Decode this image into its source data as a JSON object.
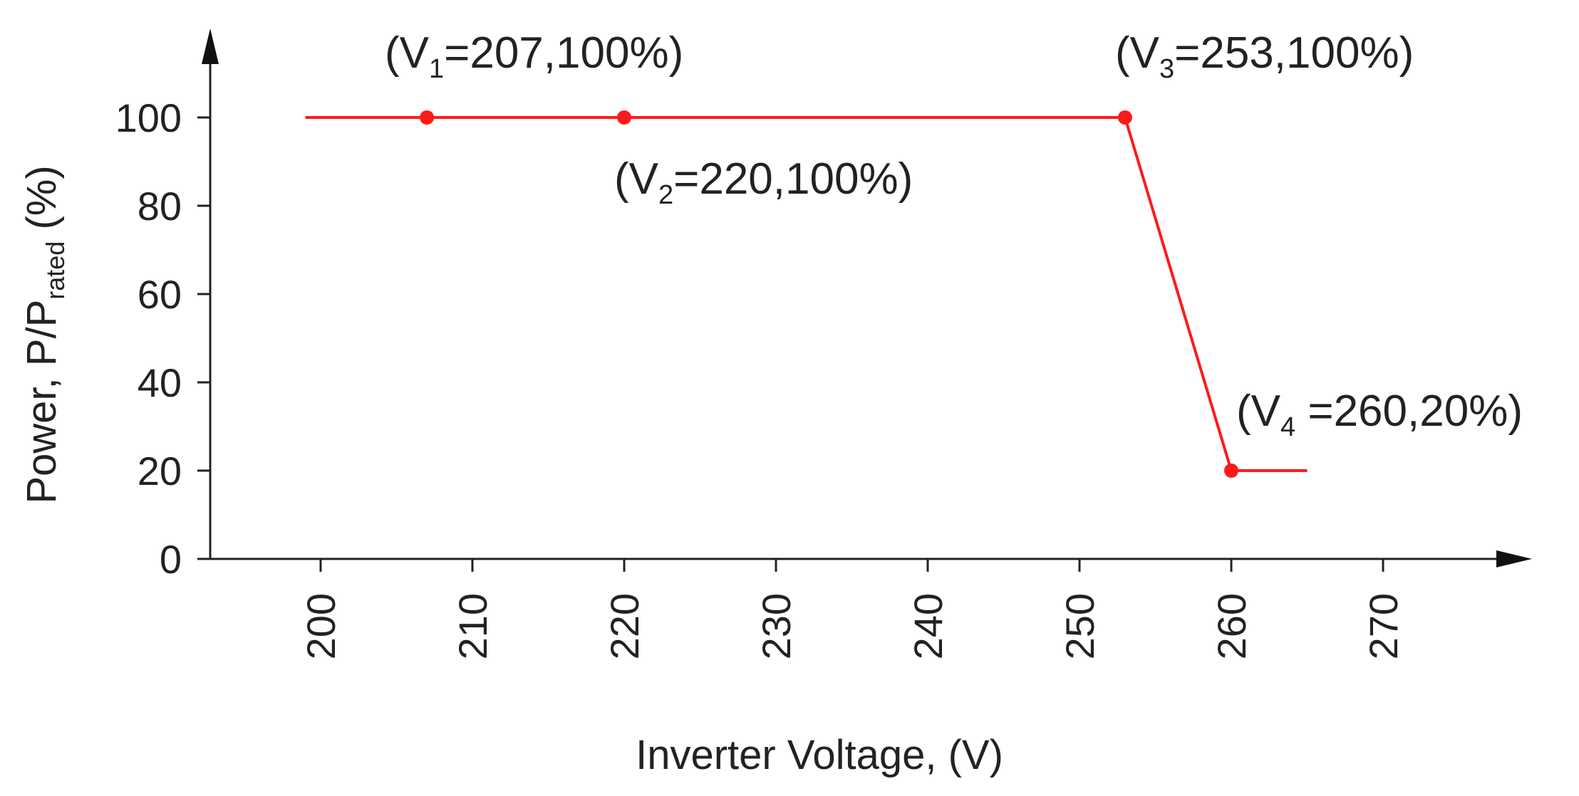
{
  "chart_data": {
    "type": "line",
    "title": "",
    "xlabel": "Inverter Voltage, (V)",
    "ylabel": {
      "main": "Power, P/P",
      "subscript": "rated",
      "unit": " (%)"
    },
    "xlim": [
      190,
      280
    ],
    "ylim": [
      0,
      120
    ],
    "x_ticks": [
      200,
      210,
      220,
      230,
      240,
      250,
      260,
      270
    ],
    "y_ticks": [
      0,
      20,
      40,
      60,
      80,
      100
    ],
    "grid": false,
    "legend": "none",
    "line_color": "#ff1a1a",
    "series": [
      {
        "x": [
          199,
          207,
          220,
          253,
          260,
          265
        ],
        "y": [
          100,
          100,
          100,
          100,
          20,
          20
        ]
      }
    ],
    "marked_points": [
      {
        "x": 207,
        "y": 100
      },
      {
        "x": 220,
        "y": 100
      },
      {
        "x": 253,
        "y": 100
      },
      {
        "x": 260,
        "y": 20
      }
    ],
    "annotations": [
      {
        "open": "(V",
        "sub": "1",
        "rest": "=207,100%)"
      },
      {
        "open": "(V",
        "sub": "2",
        "rest": "=220,100%)"
      },
      {
        "open": "(V",
        "sub": "3",
        "rest": "=253,100%)"
      },
      {
        "open": "(V",
        "sub": "4",
        "rest": " =260,20%)"
      }
    ]
  }
}
